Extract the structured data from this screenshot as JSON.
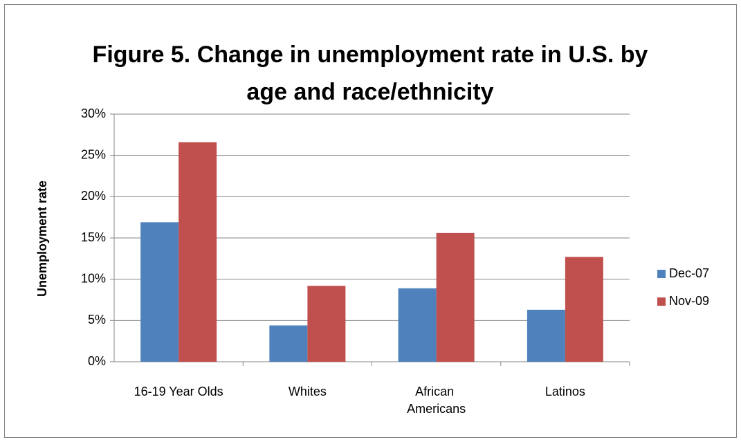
{
  "chart_data": {
    "type": "bar",
    "title": "Figure 5.  Change in unemployment rate in U.S. by age and race/ethnicity",
    "y_label": "Unemployment rate",
    "categories": [
      "16-19 Year Olds",
      "Whites",
      "African Americans",
      "Latinos"
    ],
    "series": [
      {
        "name": "Dec-07",
        "color": "#4f81bd",
        "values": [
          16.9,
          4.4,
          8.9,
          6.3
        ]
      },
      {
        "name": "Nov-09",
        "color": "#c0504d",
        "values": [
          26.6,
          9.2,
          15.6,
          12.7
        ]
      }
    ],
    "ylim": [
      0,
      30
    ],
    "yticks": [
      {
        "value": 0,
        "label": "0%"
      },
      {
        "value": 5,
        "label": "5%"
      },
      {
        "value": 10,
        "label": "10%"
      },
      {
        "value": 15,
        "label": "15%"
      },
      {
        "value": 20,
        "label": "20%"
      },
      {
        "value": 25,
        "label": "25%"
      },
      {
        "value": 30,
        "label": "30%"
      }
    ],
    "grid": true,
    "legend": "right"
  }
}
